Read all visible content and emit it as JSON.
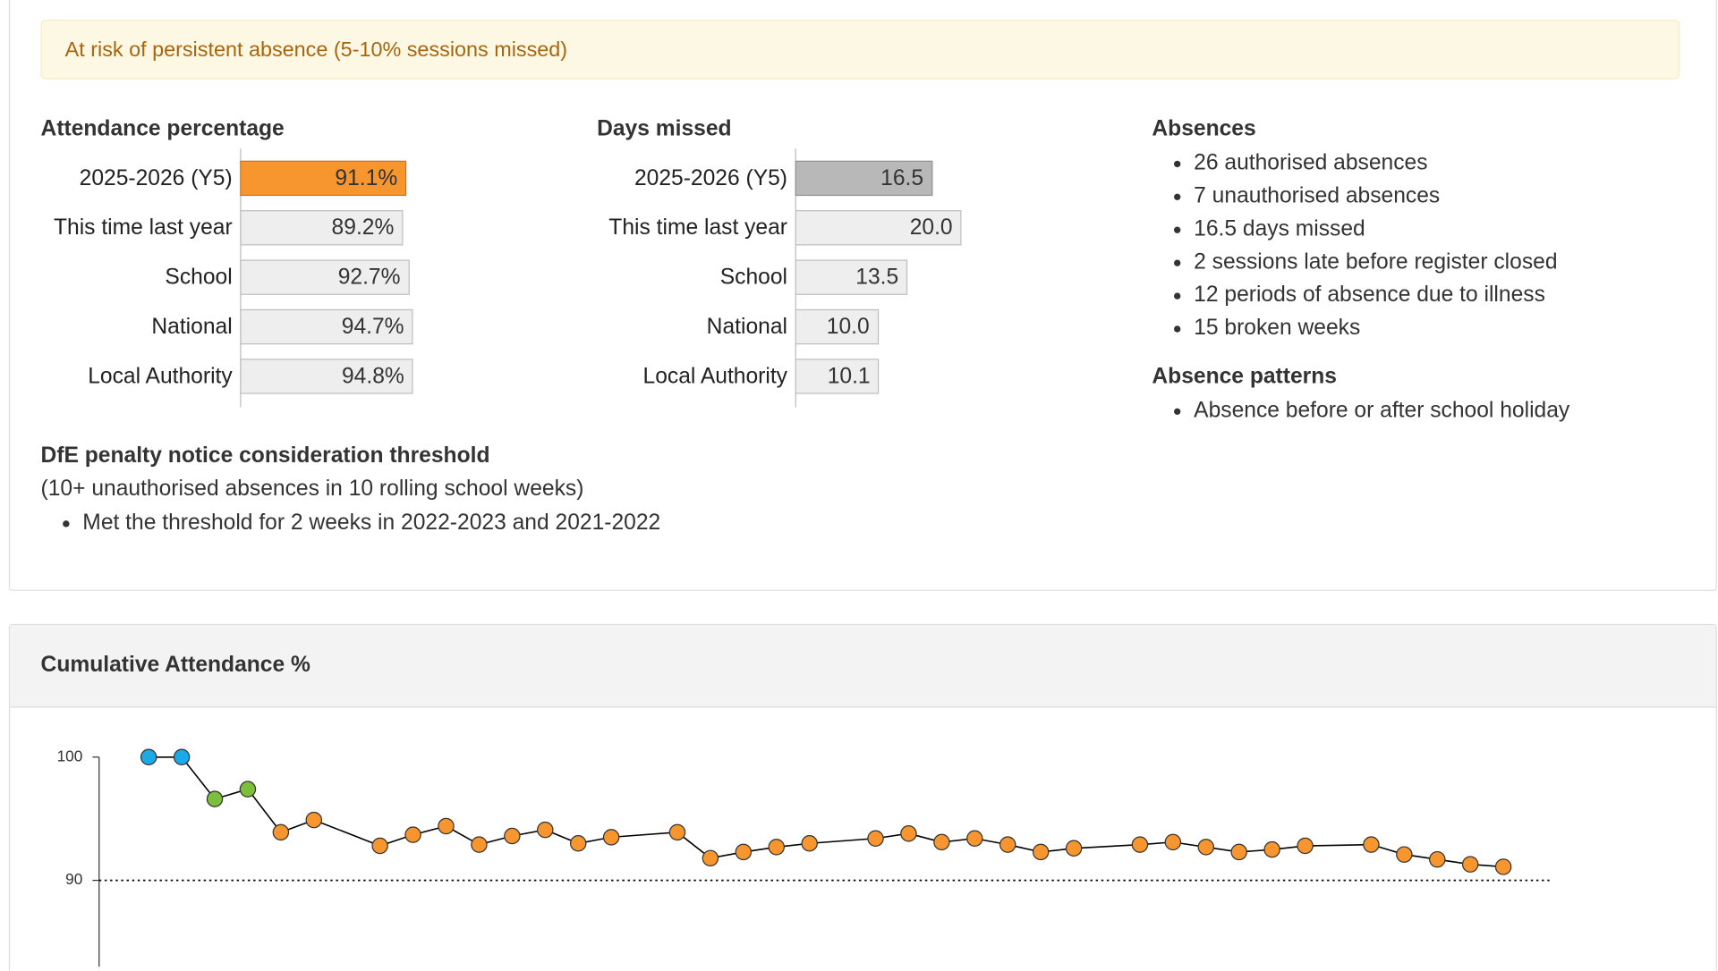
{
  "banner": "At risk of persistent absence (5-10% sessions missed)",
  "chart_data": [
    {
      "type": "bar",
      "title": "Attendance percentage",
      "categories": [
        "2025-2026 (Y5)",
        "This time last year",
        "School",
        "National",
        "Local Authority"
      ],
      "values": [
        91.1,
        89.2,
        92.7,
        94.7,
        94.8
      ],
      "value_labels": [
        "91.1%",
        "89.2%",
        "92.7%",
        "94.7%",
        "94.8%"
      ],
      "colors": [
        "#f7952f",
        "#eeeeee",
        "#eeeeee",
        "#eeeeee",
        "#eeeeee"
      ]
    },
    {
      "type": "bar",
      "title": "Days missed",
      "categories": [
        "2025-2026 (Y5)",
        "This time last year",
        "School",
        "National",
        "Local Authority"
      ],
      "values": [
        16.5,
        20.0,
        13.5,
        10.0,
        10.1
      ],
      "value_labels": [
        "16.5",
        "20.0",
        "13.5",
        "10.0",
        "10.1"
      ],
      "colors": [
        "#b8b8b8",
        "#eeeeee",
        "#eeeeee",
        "#eeeeee",
        "#eeeeee"
      ]
    },
    {
      "type": "line",
      "title": "Cumulative Attendance %",
      "x": [
        1,
        2,
        3,
        4,
        5,
        6,
        8,
        9,
        10,
        11,
        12,
        13,
        14,
        15,
        17,
        18,
        19,
        20,
        21,
        23,
        24,
        25,
        26,
        27,
        28,
        29,
        31,
        32,
        33,
        34,
        35,
        36,
        38,
        39,
        40,
        41,
        42
      ],
      "values": [
        100,
        100,
        96.6,
        97.4,
        93.9,
        94.9,
        92.8,
        93.7,
        94.4,
        92.9,
        93.6,
        94.1,
        93.0,
        93.5,
        93.9,
        91.8,
        92.3,
        92.7,
        93.0,
        93.4,
        93.8,
        93.1,
        93.4,
        92.9,
        92.3,
        92.6,
        92.9,
        93.1,
        92.7,
        92.3,
        92.5,
        92.8,
        92.9,
        92.1,
        91.7,
        91.3,
        91.1
      ],
      "colors": [
        "#1ba9e8",
        "#1ba9e8",
        "#7cbf3a",
        "#7cbf3a",
        "#f7952f",
        "#f7952f",
        "#f7952f",
        "#f7952f",
        "#f7952f",
        "#f7952f",
        "#f7952f",
        "#f7952f",
        "#f7952f",
        "#f7952f",
        "#f7952f",
        "#f7952f",
        "#f7952f",
        "#f7952f",
        "#f7952f",
        "#f7952f",
        "#f7952f",
        "#f7952f",
        "#f7952f",
        "#f7952f",
        "#f7952f",
        "#f7952f",
        "#f7952f",
        "#f7952f",
        "#f7952f",
        "#f7952f",
        "#f7952f",
        "#f7952f",
        "#f7952f",
        "#f7952f",
        "#f7952f",
        "#f7952f",
        "#f7952f"
      ],
      "line_color": "#000000",
      "xlim": [
        -0.5,
        43.43
      ],
      "ylim": [
        83,
        100
      ],
      "yticks": [
        90,
        100
      ],
      "threshold": 90
    }
  ],
  "absences": {
    "title": "Absences",
    "items": [
      "26 authorised absences",
      "7 unauthorised absences",
      "16.5 days missed",
      "2 sessions late before register closed",
      "12 periods of absence due to illness",
      "15 broken weeks"
    ]
  },
  "patterns": {
    "title": "Absence patterns",
    "items": [
      "Absence before or after school holiday"
    ]
  },
  "threshold": {
    "title": "DfE penalty notice consideration threshold",
    "subtitle": "(10+ unauthorised absences in 10 rolling school weeks)",
    "items": [
      "Met the threshold for 2 weeks in 2022-2023 and 2021-2022"
    ]
  }
}
